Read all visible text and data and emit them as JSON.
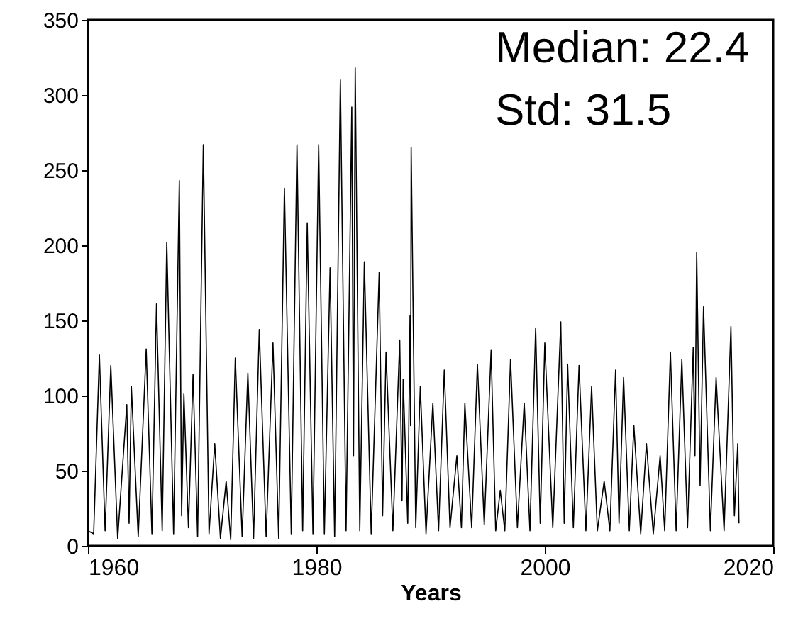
{
  "chart_data": {
    "type": "line",
    "xlabel": "Years",
    "annotations": [
      "Median: 22.4",
      "Std: 31.5"
    ],
    "xlim": [
      1960,
      2020
    ],
    "xticks": [
      1960,
      1980,
      2000,
      2020
    ],
    "ylim": [
      0,
      350
    ],
    "yticks": [
      0,
      50,
      100,
      150,
      200,
      250,
      300,
      350
    ],
    "grid": false,
    "line_style": "solid",
    "marker": "none",
    "series": [
      {
        "color": "#000000",
        "x": [
          1960.0,
          1960.5,
          1961.0,
          1961.5,
          1962.0,
          1962.6,
          1963.4,
          1963.6,
          1963.8,
          1964.4,
          1965.1,
          1965.6,
          1966.0,
          1966.5,
          1966.9,
          1967.5,
          1968.0,
          1968.2,
          1968.4,
          1968.8,
          1969.2,
          1969.6,
          1970.1,
          1970.6,
          1971.1,
          1971.6,
          1972.1,
          1972.5,
          1972.9,
          1973.5,
          1974.0,
          1974.5,
          1975.0,
          1975.6,
          1976.2,
          1976.7,
          1977.2,
          1977.8,
          1978.3,
          1978.8,
          1979.2,
          1979.7,
          1980.2,
          1980.7,
          1981.2,
          1981.6,
          1982.1,
          1982.6,
          1983.1,
          1983.25,
          1983.4,
          1983.8,
          1984.2,
          1984.8,
          1985.5,
          1985.8,
          1986.1,
          1986.7,
          1987.3,
          1987.5,
          1987.6,
          1988.0,
          1988.2,
          1988.25,
          1988.3,
          1988.7,
          1989.1,
          1989.6,
          1990.2,
          1990.7,
          1991.2,
          1991.7,
          1992.3,
          1992.7,
          1993.0,
          1993.6,
          1994.1,
          1994.7,
          1995.3,
          1995.7,
          1996.1,
          1996.5,
          1997.0,
          1997.6,
          1998.2,
          1998.7,
          1999.2,
          1999.6,
          2000.0,
          2000.7,
          2001.4,
          2001.7,
          2002.0,
          2002.5,
          2003.0,
          2003.6,
          2004.1,
          2004.6,
          2005.2,
          2005.7,
          2006.2,
          2006.5,
          2006.9,
          2007.4,
          2007.8,
          2008.4,
          2008.9,
          2009.5,
          2010.1,
          2010.5,
          2011.0,
          2011.5,
          2012.0,
          2012.5,
          2013.0,
          2013.15,
          2013.3,
          2013.6,
          2013.9,
          2014.5,
          2015.0,
          2015.7,
          2016.3,
          2016.6,
          2016.9,
          2017.0
        ],
        "values": [
          10,
          8,
          127,
          10,
          120,
          5,
          94,
          15,
          106,
          6,
          131,
          8,
          161,
          10,
          202,
          8,
          243,
          20,
          101,
          12,
          114,
          6,
          267,
          8,
          68,
          5,
          43,
          4,
          125,
          6,
          115,
          5,
          144,
          6,
          135,
          5,
          238,
          8,
          267,
          10,
          215,
          8,
          267,
          8,
          185,
          6,
          310,
          10,
          292,
          60,
          318,
          10,
          189,
          8,
          182,
          20,
          129,
          10,
          137,
          30,
          111,
          15,
          153,
          80,
          265,
          12,
          106,
          8,
          95,
          10,
          117,
          12,
          60,
          12,
          95,
          12,
          121,
          14,
          130,
          10,
          37,
          10,
          124,
          12,
          95,
          10,
          145,
          15,
          135,
          12,
          149,
          15,
          121,
          12,
          120,
          10,
          106,
          10,
          43,
          10,
          117,
          15,
          112,
          10,
          80,
          8,
          68,
          8,
          60,
          10,
          129,
          10,
          124,
          12,
          132,
          60,
          195,
          40,
          159,
          10,
          112,
          10,
          146,
          20,
          68,
          15
        ]
      }
    ]
  }
}
